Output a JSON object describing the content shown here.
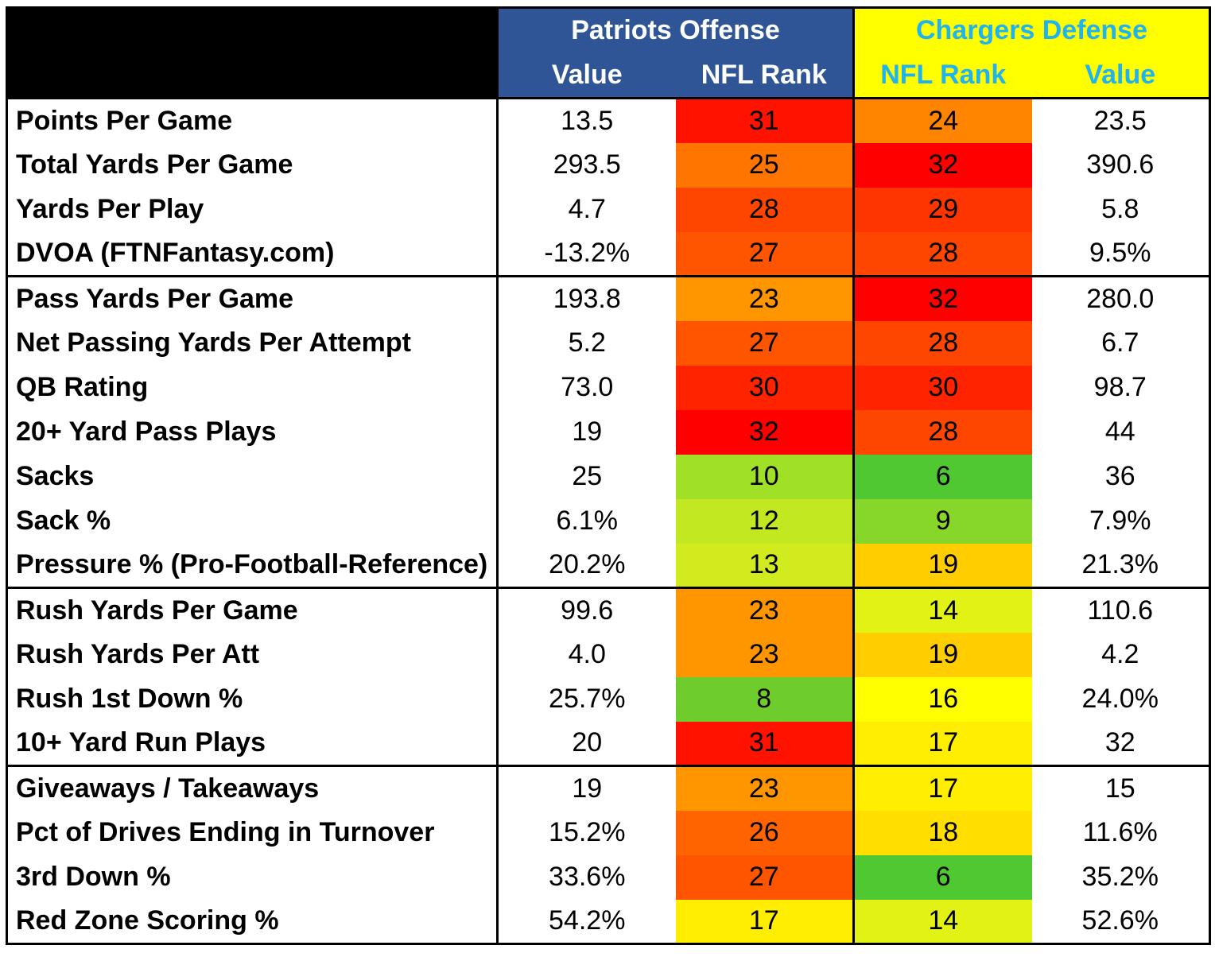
{
  "header": {
    "patriots_title": "Patriots Offense",
    "chargers_title": "Chargers Defense",
    "pat_value": "Value",
    "pat_rank": "NFL Rank",
    "chg_rank": "NFL Rank",
    "chg_value": "Value"
  },
  "colors": {
    "patriots_header_bg": "#2f5597",
    "patriots_header_text": "#ffffff",
    "chargers_header_bg": "#ffff00",
    "chargers_header_text": "#1fb3f0",
    "rank_scale": {
      "1": "#3cc83c",
      "16": "#ffff00",
      "32": "#ff0000"
    }
  },
  "chart_data": {
    "type": "table",
    "columns": [
      "",
      "Value",
      "NFL Rank",
      "NFL Rank",
      "Value"
    ],
    "column_groups": [
      {
        "name": "Patriots Offense",
        "columns": [
          "Value",
          "NFL Rank"
        ]
      },
      {
        "name": "Chargers Defense",
        "columns": [
          "NFL Rank",
          "Value"
        ]
      }
    ],
    "sections": [
      {
        "rows": [
          {
            "label": "Points Per Game",
            "pat_value": "13.5",
            "pat_rank": 31,
            "chg_rank": 24,
            "chg_value": "23.5"
          },
          {
            "label": "Total Yards Per Game",
            "pat_value": "293.5",
            "pat_rank": 25,
            "chg_rank": 32,
            "chg_value": "390.6"
          },
          {
            "label": "Yards Per Play",
            "pat_value": "4.7",
            "pat_rank": 28,
            "chg_rank": 29,
            "chg_value": "5.8"
          },
          {
            "label": "DVOA (FTNFantasy.com)",
            "pat_value": "-13.2%",
            "pat_rank": 27,
            "chg_rank": 28,
            "chg_value": "9.5%"
          }
        ]
      },
      {
        "rows": [
          {
            "label": "Pass Yards Per Game",
            "pat_value": "193.8",
            "pat_rank": 23,
            "chg_rank": 32,
            "chg_value": "280.0"
          },
          {
            "label": "Net Passing Yards Per Attempt",
            "pat_value": "5.2",
            "pat_rank": 27,
            "chg_rank": 28,
            "chg_value": "6.7"
          },
          {
            "label": "QB Rating",
            "pat_value": "73.0",
            "pat_rank": 30,
            "chg_rank": 30,
            "chg_value": "98.7"
          },
          {
            "label": "20+ Yard Pass Plays",
            "pat_value": "19",
            "pat_rank": 32,
            "chg_rank": 28,
            "chg_value": "44"
          },
          {
            "label": "Sacks",
            "pat_value": "25",
            "pat_rank": 10,
            "chg_rank": 6,
            "chg_value": "36"
          },
          {
            "label": "Sack %",
            "pat_value": "6.1%",
            "pat_rank": 12,
            "chg_rank": 9,
            "chg_value": "7.9%"
          },
          {
            "label": "Pressure % (Pro-Football-Reference)",
            "pat_value": "20.2%",
            "pat_rank": 13,
            "chg_rank": 19,
            "chg_value": "21.3%"
          }
        ]
      },
      {
        "rows": [
          {
            "label": "Rush Yards Per Game",
            "pat_value": "99.6",
            "pat_rank": 23,
            "chg_rank": 14,
            "chg_value": "110.6"
          },
          {
            "label": "Rush Yards Per Att",
            "pat_value": "4.0",
            "pat_rank": 23,
            "chg_rank": 19,
            "chg_value": "4.2"
          },
          {
            "label": "Rush 1st Down %",
            "pat_value": "25.7%",
            "pat_rank": 8,
            "chg_rank": 16,
            "chg_value": "24.0%"
          },
          {
            "label": "10+ Yard Run Plays",
            "pat_value": "20",
            "pat_rank": 31,
            "chg_rank": 17,
            "chg_value": "32"
          }
        ]
      },
      {
        "rows": [
          {
            "label": "Giveaways / Takeaways",
            "pat_value": "19",
            "pat_rank": 23,
            "chg_rank": 17,
            "chg_value": "15"
          },
          {
            "label": "Pct of Drives Ending in Turnover",
            "pat_value": "15.2%",
            "pat_rank": 26,
            "chg_rank": 18,
            "chg_value": "11.6%"
          },
          {
            "label": "3rd Down %",
            "pat_value": "33.6%",
            "pat_rank": 27,
            "chg_rank": 6,
            "chg_value": "35.2%"
          },
          {
            "label": "Red Zone Scoring %",
            "pat_value": "54.2%",
            "pat_rank": 17,
            "chg_rank": 14,
            "chg_value": "52.6%"
          }
        ]
      }
    ]
  }
}
